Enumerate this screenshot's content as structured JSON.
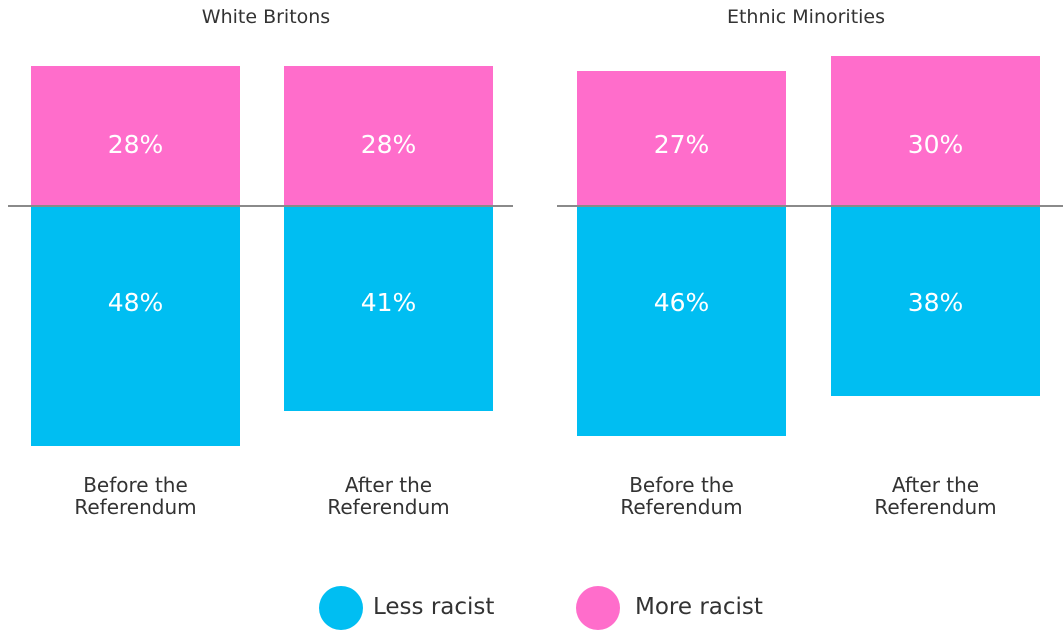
{
  "chart_data": [
    {
      "type": "diverging-bar",
      "title": "White Britons",
      "categories": [
        "Before the Referendum",
        "After the Referendum"
      ],
      "series": [
        {
          "name": "Less racist",
          "color": "#00bef2",
          "values": [
            48,
            41
          ],
          "value_labels": [
            "48%",
            "41%"
          ]
        },
        {
          "name": "More racist",
          "color": "#ff6dcb",
          "values": [
            28,
            28
          ],
          "value_labels": [
            "28%",
            "28%"
          ]
        }
      ]
    },
    {
      "type": "diverging-bar",
      "title": "Ethnic Minorities",
      "categories": [
        "Before the Referendum",
        "After the Referendum"
      ],
      "series": [
        {
          "color": "#00bef2",
          "values": [
            46,
            38
          ],
          "value_labels": [
            "46%",
            "38%"
          ]
        },
        {
          "color": "#ff6dcb",
          "values": [
            27,
            30
          ],
          "value_labels": [
            "27%",
            "30%"
          ]
        }
      ]
    }
  ]
}
